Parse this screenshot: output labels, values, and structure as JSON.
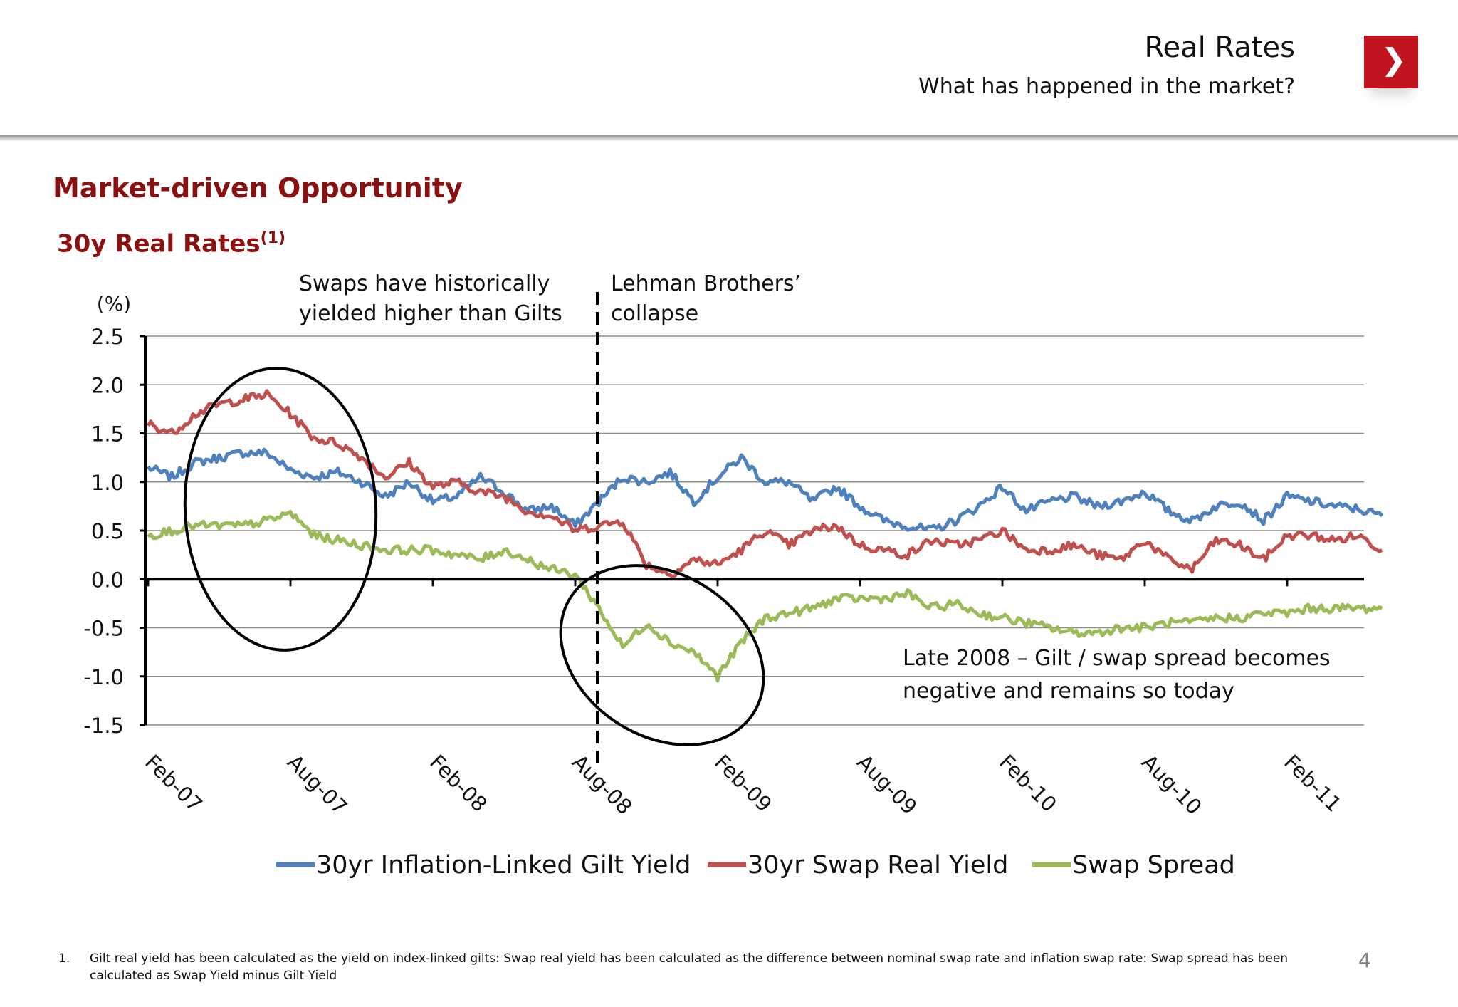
{
  "header": {
    "title": "Real Rates",
    "subtitle": "What has happened in the market?"
  },
  "section": {
    "title": "Market-driven Opportunity",
    "chart_title": "30y Real Rates",
    "chart_title_sup": "(1)"
  },
  "colors": {
    "brand_red": "#c0141e",
    "title_red": "#8a1111",
    "gilt": "#4f81bd",
    "swap": "#c0504d",
    "spread": "#9bbb59"
  },
  "chart_data": {
    "type": "line",
    "ylabel": "(%)",
    "ylim": [
      -1.5,
      2.5
    ],
    "yticks": [
      "2.5",
      "2.0",
      "1.5",
      "1.0",
      "0.5",
      "0.0",
      "-0.5",
      "-1.0",
      "-1.5"
    ],
    "xticks": [
      "Feb-07",
      "Aug-07",
      "Feb-08",
      "Aug-08",
      "Feb-09",
      "Aug-09",
      "Feb-10",
      "Aug-10",
      "Feb-11"
    ],
    "x": [
      "Feb-07",
      "Mar-07",
      "Apr-07",
      "May-07",
      "Jun-07",
      "Jul-07",
      "Aug-07",
      "Sep-07",
      "Oct-07",
      "Nov-07",
      "Dec-07",
      "Jan-08",
      "Feb-08",
      "Mar-08",
      "Apr-08",
      "May-08",
      "Jun-08",
      "Jul-08",
      "Aug-08",
      "Sep-08",
      "Oct-08",
      "Nov-08",
      "Dec-08",
      "Jan-09",
      "Feb-09",
      "Mar-09",
      "Apr-09",
      "May-09",
      "Jun-09",
      "Jul-09",
      "Aug-09",
      "Sep-09",
      "Oct-09",
      "Nov-09",
      "Dec-09",
      "Jan-10",
      "Feb-10",
      "Mar-10",
      "Apr-10",
      "May-10",
      "Jun-10",
      "Jul-10",
      "Aug-10",
      "Sep-10",
      "Oct-10",
      "Nov-10",
      "Dec-10",
      "Jan-11",
      "Feb-11",
      "Mar-11",
      "Apr-11",
      "May-11",
      "Jun-11"
    ],
    "series": [
      {
        "name": "30yr Inflation-Linked Gilt Yield",
        "values": [
          1.15,
          1.05,
          1.2,
          1.25,
          1.3,
          1.3,
          1.12,
          1.05,
          1.1,
          1.0,
          0.85,
          1.0,
          0.8,
          0.85,
          1.05,
          0.9,
          0.7,
          0.75,
          0.55,
          0.8,
          1.05,
          1.0,
          1.1,
          0.8,
          1.05,
          1.25,
          1.0,
          1.0,
          0.8,
          0.95,
          0.75,
          0.6,
          0.55,
          0.5,
          0.6,
          0.75,
          0.95,
          0.7,
          0.8,
          0.85,
          0.75,
          0.8,
          0.9,
          0.7,
          0.6,
          0.75,
          0.8,
          0.6,
          0.85,
          0.8,
          0.75,
          0.72,
          0.65
        ]
      },
      {
        "name": "30yr Swap Real Yield",
        "values": [
          1.6,
          1.5,
          1.7,
          1.8,
          1.85,
          1.9,
          1.7,
          1.45,
          1.4,
          1.25,
          1.05,
          1.2,
          0.95,
          1.0,
          0.9,
          0.85,
          0.7,
          0.65,
          0.5,
          0.55,
          0.6,
          0.15,
          0.05,
          0.2,
          0.15,
          0.3,
          0.5,
          0.35,
          0.5,
          0.55,
          0.35,
          0.3,
          0.25,
          0.4,
          0.35,
          0.4,
          0.5,
          0.3,
          0.3,
          0.35,
          0.25,
          0.2,
          0.4,
          0.2,
          0.1,
          0.4,
          0.35,
          0.2,
          0.45,
          0.45,
          0.4,
          0.45,
          0.3
        ]
      },
      {
        "name": "Swap Spread",
        "values": [
          0.45,
          0.5,
          0.55,
          0.55,
          0.55,
          0.6,
          0.68,
          0.45,
          0.4,
          0.35,
          0.3,
          0.3,
          0.3,
          0.25,
          0.2,
          0.3,
          0.2,
          0.1,
          0.05,
          -0.3,
          -0.7,
          -0.45,
          -0.65,
          -0.75,
          -1.0,
          -0.65,
          -0.4,
          -0.35,
          -0.3,
          -0.2,
          -0.2,
          -0.2,
          -0.15,
          -0.3,
          -0.25,
          -0.35,
          -0.4,
          -0.45,
          -0.5,
          -0.55,
          -0.55,
          -0.5,
          -0.5,
          -0.45,
          -0.45,
          -0.4,
          -0.4,
          -0.35,
          -0.35,
          -0.3,
          -0.3,
          -0.3,
          -0.3
        ]
      }
    ],
    "annotations": [
      "Swaps have historically yielded higher than Gilts",
      "Lehman Brothers’ collapse",
      "Late 2008 – Gilt / swap spread  becomes negative and remains so today"
    ],
    "grid": true,
    "legend": "bottom"
  },
  "annotations": {
    "swaps_line1": "Swaps have historically",
    "swaps_line2": "yielded higher than Gilts",
    "lehman_line1": "Lehman Brothers’",
    "lehman_line2": "collapse",
    "late_line1": "Late 2008 – Gilt / swap spread  becomes",
    "late_line2": "negative and remains so today"
  },
  "legend": [
    {
      "label": "30yr Inflation-Linked Gilt Yield"
    },
    {
      "label": "30yr Swap Real Yield"
    },
    {
      "label": "Swap Spread"
    }
  ],
  "footnote": {
    "number": "1.",
    "text": "Gilt real yield has been calculated as the yield on index-linked gilts: Swap real yield has been calculated as the difference between nominal swap rate and inflation swap rate: Swap spread has been calculated as Swap Yield minus Gilt Yield"
  },
  "page_number": "4"
}
